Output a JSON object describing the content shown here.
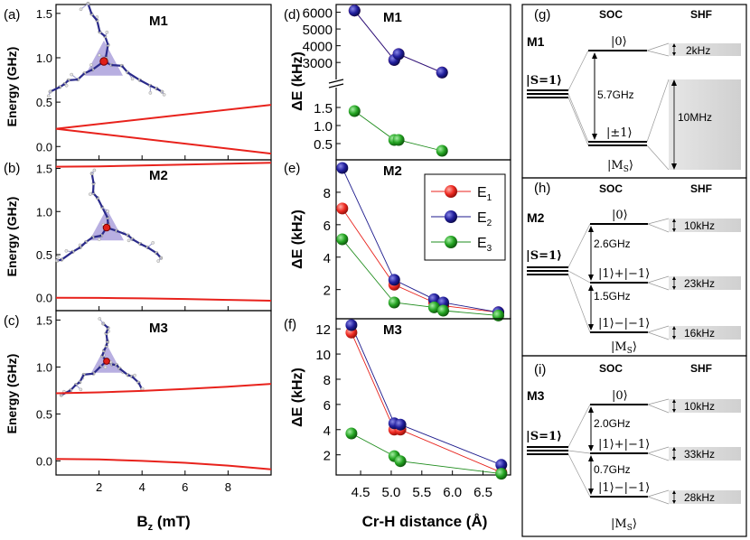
{
  "chart_data": [
    {
      "panel": "a",
      "type": "line",
      "title": "M1",
      "xlabel": "B",
      "xlabel_sub": "z",
      "xlabel_unit": " (mT)",
      "ylabel": "Energy (GHz)",
      "xlim": [
        0,
        10
      ],
      "ylim": [
        -0.15,
        1.6
      ],
      "yticks": [
        0.0,
        0.5,
        1.0,
        1.5
      ],
      "ytick_labels": [
        "0.0",
        "0.5",
        "1.0",
        "1.5"
      ],
      "xticks": [
        2,
        4,
        6,
        8
      ],
      "xtick_labels": [
        "2",
        "4",
        "6",
        "8"
      ],
      "series": [
        {
          "name": "upper",
          "color": "#e8221c",
          "x": [
            0,
            10
          ],
          "y": [
            0.2,
            0.47
          ]
        },
        {
          "name": "lower",
          "color": "#e8221c",
          "x": [
            0,
            10
          ],
          "y": [
            0.2,
            -0.08
          ]
        }
      ]
    },
    {
      "panel": "b",
      "type": "line",
      "title": "M2",
      "ylabel": "Energy (GHz)",
      "xlim": [
        0,
        10
      ],
      "ylim": [
        -0.15,
        1.6
      ],
      "yticks": [
        0.0,
        0.5,
        1.0,
        1.5
      ],
      "ytick_labels": [
        "0.0",
        "0.5",
        "1.0",
        "1.5"
      ],
      "series": [
        {
          "name": "top",
          "color": "#e8221c",
          "x": [
            0,
            2,
            4,
            6,
            8,
            10
          ],
          "y": [
            1.52,
            1.525,
            1.535,
            1.545,
            1.555,
            1.565
          ]
        },
        {
          "name": "bottom",
          "color": "#e8221c",
          "x": [
            0,
            2,
            4,
            6,
            8,
            10
          ],
          "y": [
            0.0,
            -0.002,
            -0.008,
            -0.015,
            -0.025,
            -0.035
          ]
        }
      ]
    },
    {
      "panel": "c",
      "type": "line",
      "title": "M3",
      "ylabel": "Energy (GHz)",
      "xlim": [
        0,
        10
      ],
      "ylim": [
        -0.15,
        1.6
      ],
      "yticks": [
        0.0,
        0.5,
        1.0,
        1.5
      ],
      "ytick_labels": [
        "0.0",
        "0.5",
        "1.0",
        "1.5"
      ],
      "series": [
        {
          "name": "top",
          "color": "#e8221c",
          "x": [
            0,
            2,
            4,
            6,
            8,
            10
          ],
          "y": [
            0.72,
            0.73,
            0.745,
            0.765,
            0.79,
            0.82
          ]
        },
        {
          "name": "bottom",
          "color": "#e8221c",
          "x": [
            0,
            2,
            4,
            6,
            8,
            10
          ],
          "y": [
            0.02,
            0.015,
            0.0,
            -0.02,
            -0.05,
            -0.09
          ]
        }
      ]
    },
    {
      "panel": "d",
      "type": "scatter",
      "title": "M1",
      "ylabel": "ΔE (kHz)",
      "xlim": [
        4.1,
        6.95
      ],
      "upper_ylim": [
        2200,
        6300
      ],
      "upper_yticks": [
        3000,
        4000,
        5000,
        6000
      ],
      "lower_ylim": [
        0.1,
        2.05
      ],
      "lower_yticks": [
        0.5,
        1.0,
        1.5
      ],
      "lower_ytick_labels": [
        "0.5",
        "1.0",
        "1.5"
      ],
      "series": [
        {
          "name": "E1",
          "color": "#e8221c",
          "x": [
            4.4,
            5.05,
            5.12,
            5.83
          ],
          "y": [
            6100,
            3150,
            3500,
            2400
          ]
        },
        {
          "name": "E2",
          "color": "#1c1a8c",
          "x": [
            4.4,
            5.05,
            5.12,
            5.83
          ],
          "y": [
            6100,
            3150,
            3500,
            2400
          ]
        },
        {
          "name": "E3",
          "color": "#1e8c1c",
          "x": [
            4.4,
            5.05,
            5.12,
            5.83
          ],
          "y": [
            1.4,
            0.6,
            0.6,
            0.3
          ]
        }
      ]
    },
    {
      "panel": "e",
      "type": "scatter",
      "title": "M2",
      "ylabel": "ΔE (kHz)",
      "xlim": [
        4.1,
        6.95
      ],
      "ylim": [
        0.2,
        10.0
      ],
      "yticks": [
        2,
        4,
        6,
        8
      ],
      "ytick_labels": [
        "2",
        "4",
        "6",
        "8"
      ],
      "legend": [
        "E",
        "E",
        "E"
      ],
      "legend_subs": [
        "1",
        "2",
        "3"
      ],
      "series": [
        {
          "name": "E1",
          "color": "#e8221c",
          "x": [
            4.2,
            5.05,
            5.7,
            5.85,
            6.75
          ],
          "y": [
            7.0,
            2.3,
            1.2,
            1.0,
            0.6
          ]
        },
        {
          "name": "E2",
          "color": "#1c1a8c",
          "x": [
            4.2,
            5.05,
            5.7,
            5.85,
            6.75
          ],
          "y": [
            9.5,
            2.6,
            1.4,
            1.2,
            0.6
          ]
        },
        {
          "name": "E3",
          "color": "#1e8c1c",
          "x": [
            4.2,
            5.05,
            5.7,
            5.85,
            6.75
          ],
          "y": [
            5.1,
            1.2,
            0.9,
            0.7,
            0.4
          ]
        }
      ]
    },
    {
      "panel": "f",
      "type": "scatter",
      "title": "M3",
      "ylabel": "ΔE (kHz)",
      "xlabel": "Cr-H distance (Å)",
      "xlim": [
        4.1,
        6.95
      ],
      "ylim": [
        0.4,
        12.8
      ],
      "yticks": [
        2,
        4,
        6,
        8,
        10,
        12
      ],
      "ytick_labels": [
        "2",
        "4",
        "6",
        "8",
        "10",
        "12"
      ],
      "xticks": [
        4.5,
        5.0,
        5.5,
        6.0,
        6.5
      ],
      "xtick_labels": [
        "4.5",
        "5.0",
        "5.5",
        "6.0",
        "6.5"
      ],
      "series": [
        {
          "name": "E1",
          "color": "#e8221c",
          "x": [
            4.35,
            5.05,
            5.15,
            6.8
          ],
          "y": [
            11.7,
            4.0,
            4.0,
            0.6
          ]
        },
        {
          "name": "E2",
          "color": "#1c1a8c",
          "x": [
            4.35,
            5.05,
            5.15,
            6.8
          ],
          "y": [
            12.3,
            4.5,
            4.4,
            1.2
          ]
        },
        {
          "name": "E3",
          "color": "#1e8c1c",
          "x": [
            4.35,
            5.05,
            5.15,
            6.8
          ],
          "y": [
            3.7,
            1.9,
            1.5,
            0.5
          ]
        }
      ]
    }
  ],
  "panel_labels": {
    "a": "(a)",
    "b": "(b)",
    "c": "(c)",
    "d": "(d)",
    "e": "(e)",
    "f": "(f)",
    "g": "(g)",
    "h": "(h)",
    "i": "(i)"
  },
  "diagrams": [
    {
      "panel": "g",
      "molecule": "M1",
      "soc_header": "SOC",
      "shf_header": "SHF",
      "spin_label": "|S=1⟩",
      "top_level": "|0⟩",
      "bottom_level": "|±1⟩",
      "ms_label": "|M",
      "ms_sub": "S",
      "ms_close": "⟩",
      "gap": "5.7GHz",
      "shf_top": "2kHz",
      "shf_bottom": "10MHz"
    },
    {
      "panel": "h",
      "molecule": "M2",
      "soc_header": "SOC",
      "shf_header": "SHF",
      "spin_label": "|S=1⟩",
      "levels": [
        "|0⟩",
        "|1⟩+|−1⟩",
        "|1⟩−|−1⟩"
      ],
      "gaps": [
        "2.6GHz",
        "1.5GHz"
      ],
      "shf": [
        "10kHz",
        "23kHz",
        "16kHz"
      ],
      "ms_label": "|M",
      "ms_sub": "S",
      "ms_close": "⟩"
    },
    {
      "panel": "i",
      "molecule": "M3",
      "soc_header": "SOC",
      "shf_header": "SHF",
      "spin_label": "|S=1⟩",
      "levels": [
        "|0⟩",
        "|1⟩+|−1⟩",
        "|1⟩−|−1⟩"
      ],
      "gaps": [
        "2.0GHz",
        "0.7GHz"
      ],
      "shf": [
        "10kHz",
        "33kHz",
        "28kHz"
      ],
      "ms_label": "|M",
      "ms_sub": "S",
      "ms_close": "⟩"
    }
  ]
}
